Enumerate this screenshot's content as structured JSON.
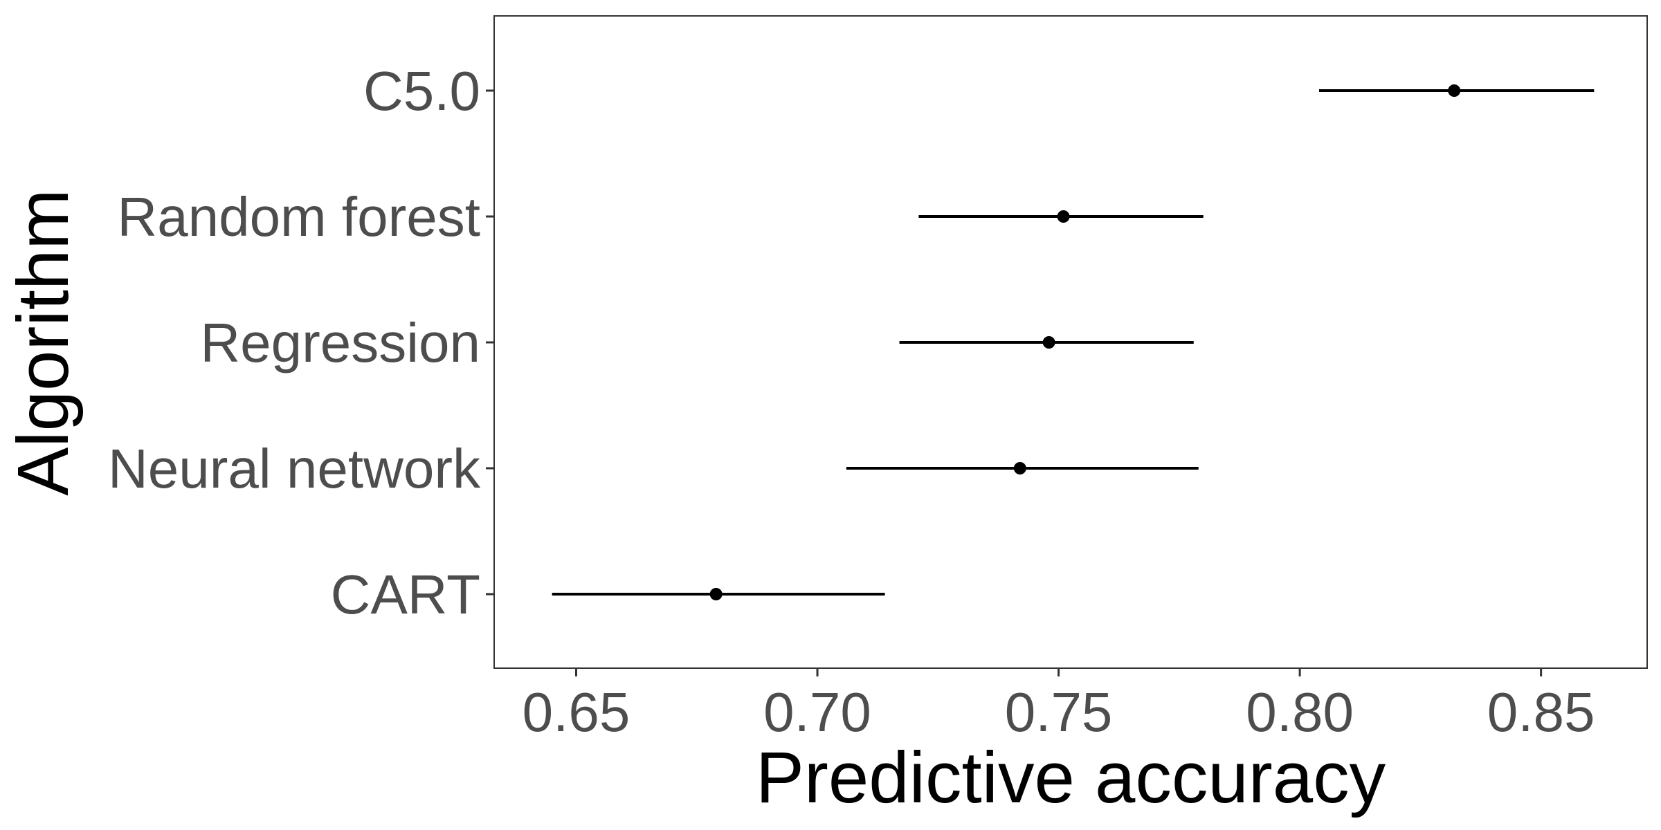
{
  "chart_data": {
    "type": "errorbar",
    "xlabel": "Predictive accuracy",
    "ylabel": "Algorithm",
    "xlim": [
      0.633,
      0.872
    ],
    "xticks": [
      0.65,
      0.7,
      0.75,
      0.8,
      0.85
    ],
    "xtick_labels": [
      "0.65",
      "0.70",
      "0.75",
      "0.80",
      "0.85"
    ],
    "categories": [
      "C5.0",
      "Random forest",
      "Regression",
      "Neural network",
      "CART"
    ],
    "points": [
      {
        "label": "C5.0",
        "estimate": 0.832,
        "lower": 0.804,
        "upper": 0.861
      },
      {
        "label": "Random forest",
        "estimate": 0.751,
        "lower": 0.721,
        "upper": 0.78
      },
      {
        "label": "Regression",
        "estimate": 0.748,
        "lower": 0.717,
        "upper": 0.778
      },
      {
        "label": "Neural network",
        "estimate": 0.742,
        "lower": 0.706,
        "upper": 0.779
      },
      {
        "label": "CART",
        "estimate": 0.679,
        "lower": 0.645,
        "upper": 0.714
      }
    ],
    "grid": false,
    "colors": {
      "marks": "#000000",
      "tick_text": "#4d4d4d",
      "panel_border": "#333333"
    }
  }
}
